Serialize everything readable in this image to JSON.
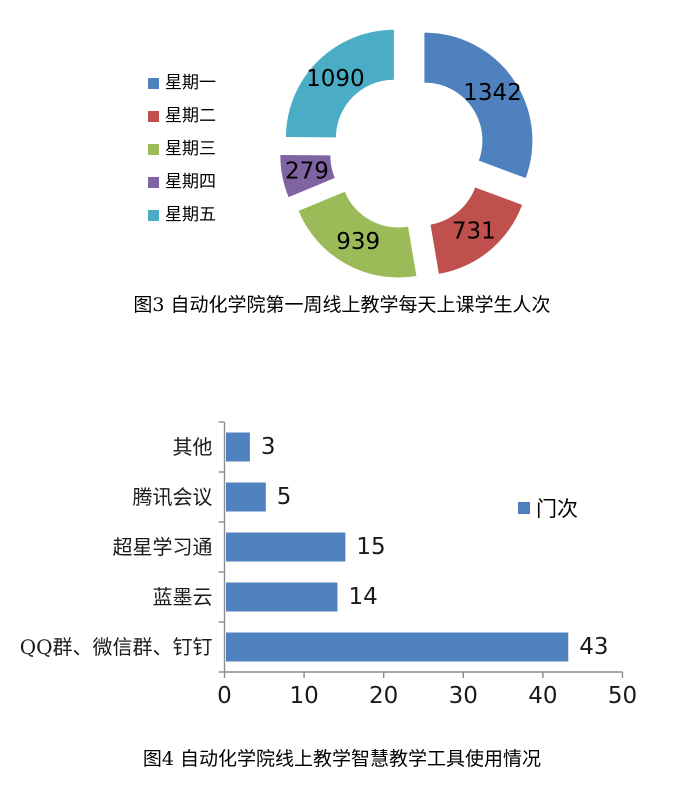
{
  "page_background": "#FFFFFF",
  "chart_data": [
    {
      "id": "fig3-doughnut",
      "type": "pie",
      "subtype": "doughnut-exploded",
      "caption": "图3 自动化学院第一周线上教学每天上课学生人次",
      "categories": [
        "星期一",
        "星期二",
        "星期三",
        "星期四",
        "星期五"
      ],
      "values": [
        1342,
        731,
        939,
        279,
        1090
      ],
      "data_labels": [
        "1342",
        "731",
        "939",
        "279",
        "1090"
      ],
      "colors": [
        "#4E81BD",
        "#C0504D",
        "#9BBB59",
        "#8064A2",
        "#4BACC6"
      ],
      "legend_position": "left",
      "start_angle_deg": 0,
      "direction": "clockwise",
      "label_color": "#000000"
    },
    {
      "id": "fig4-bar",
      "type": "bar",
      "orientation": "horizontal",
      "caption": "图4 自动化学院线上教学智慧教学工具使用情况",
      "categories_top_to_bottom": [
        "其他",
        "腾讯会议",
        "超星学习通",
        "蓝墨云",
        "QQ群、微信群、钉钉"
      ],
      "series": [
        {
          "name": "门次",
          "values": [
            3,
            5,
            15,
            14,
            43
          ]
        }
      ],
      "data_labels": [
        "3",
        "5",
        "15",
        "14",
        "43"
      ],
      "bar_color": "#4E81BD",
      "xlim": [
        0,
        50
      ],
      "x_ticks": [
        0,
        10,
        20,
        30,
        40,
        50
      ],
      "grid": false,
      "legend_label": "门次",
      "legend_position": "right",
      "axis_color": "#8C8C8C",
      "text_color": "#1A1A1A"
    }
  ]
}
